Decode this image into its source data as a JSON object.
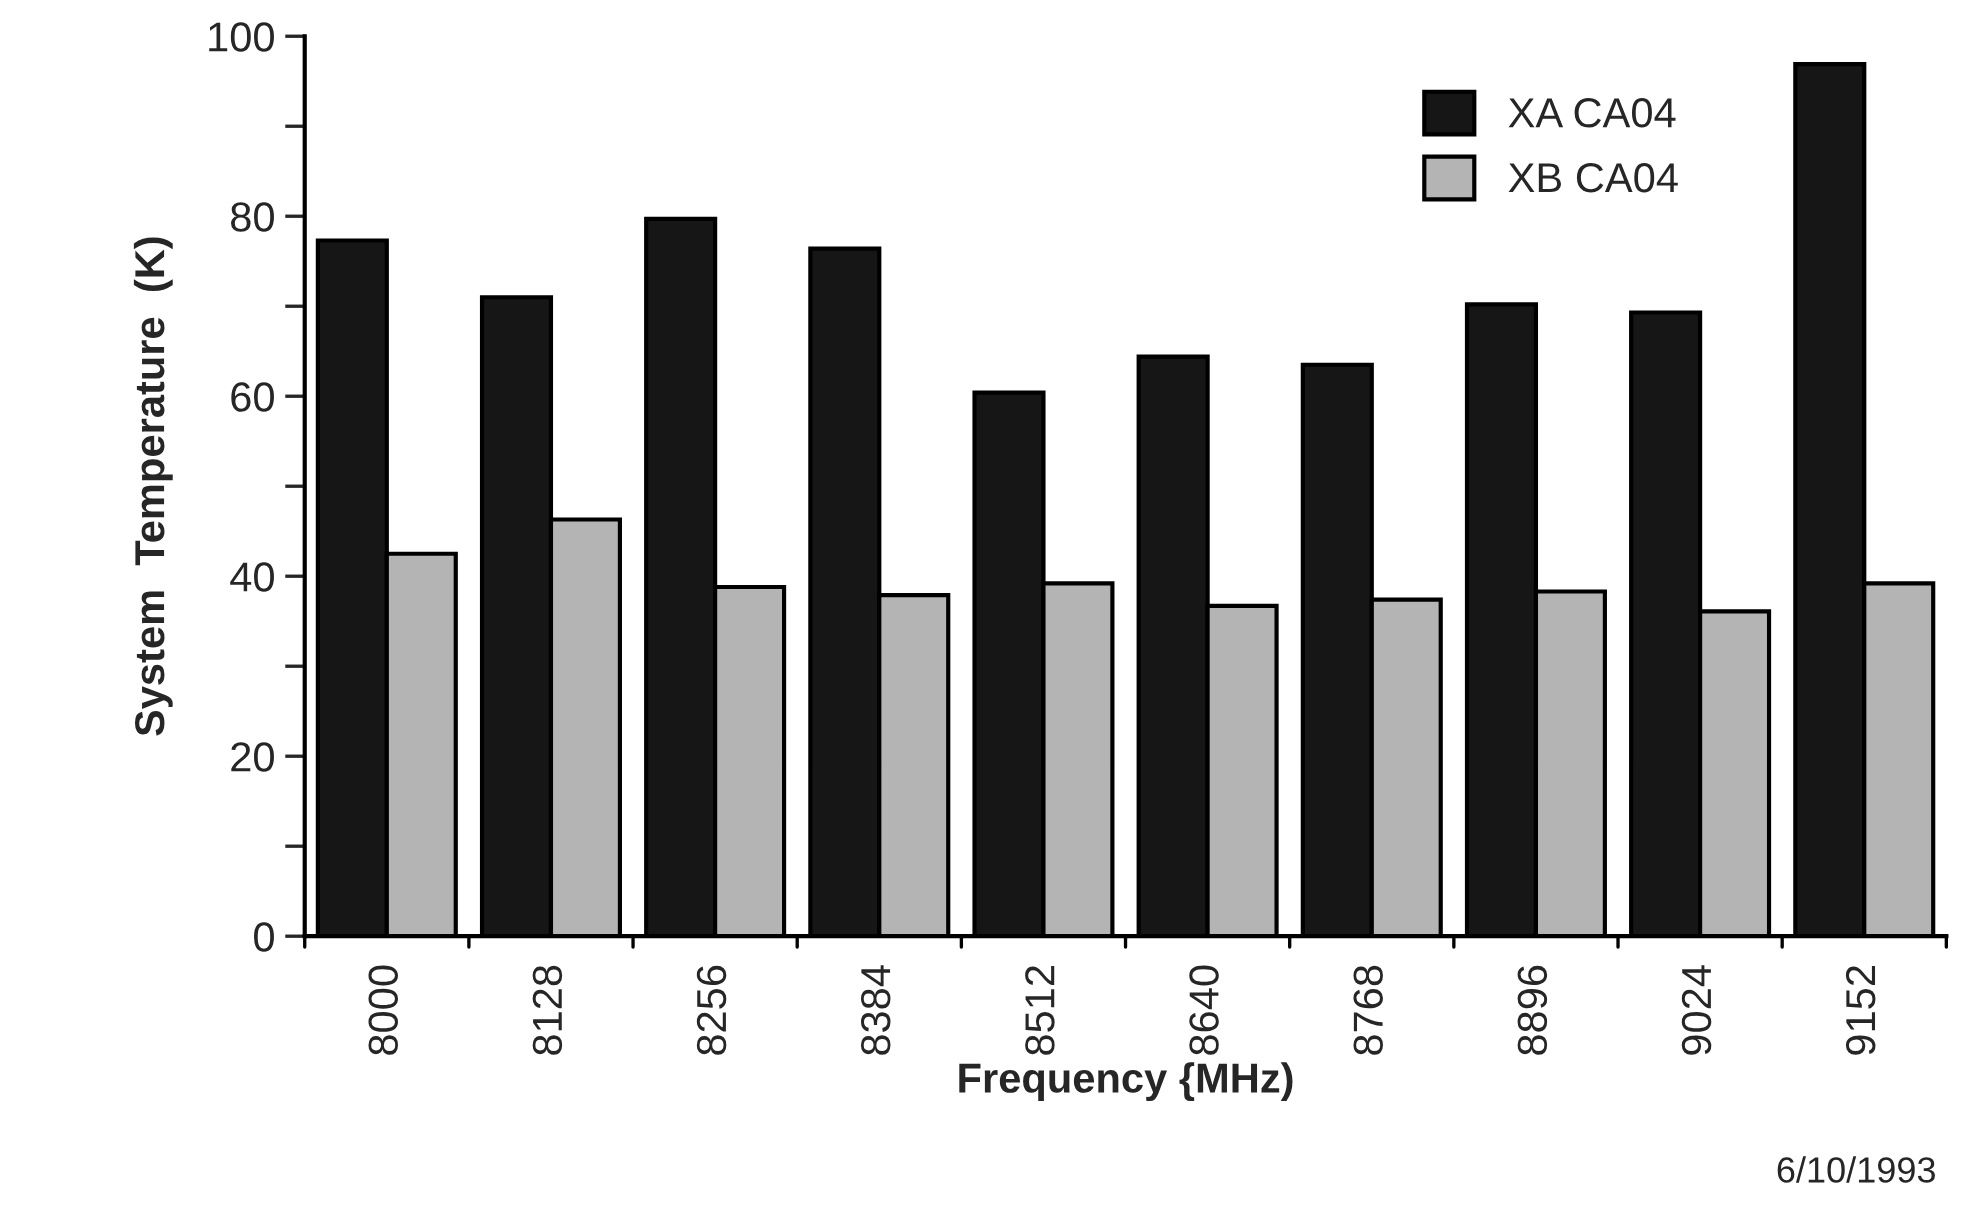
{
  "chart_data": {
    "type": "bar",
    "xlabel": "Frequency {MHz)",
    "ylabel": "System  Temperature  (K)",
    "categories": [
      "8000",
      "8128",
      "8256",
      "8384",
      "8512",
      "8640",
      "8768",
      "8896",
      "9024",
      "9152"
    ],
    "series": [
      {
        "name": "XA CA04",
        "color": "#161616",
        "values": [
          77.3,
          71,
          79.7,
          76.4,
          60.4,
          64.4,
          63.5,
          70.2,
          69.3,
          96.9
        ]
      },
      {
        "name": "XB CA04",
        "color": "#b4b4b4",
        "values": [
          42.5,
          46.3,
          38.8,
          37.9,
          39.2,
          36.7,
          37.4,
          38.3,
          36.1,
          39.2
        ]
      }
    ],
    "ylim": [
      0,
      100
    ],
    "yticks": [
      0,
      {
        "value": 10,
        "label": null
      },
      20,
      {
        "value": 30,
        "label": null
      },
      40,
      {
        "value": 50,
        "label": null
      },
      60,
      {
        "value": 70,
        "label": null
      },
      80,
      {
        "value": 90,
        "label": null
      },
      100
    ],
    "grid": false,
    "legend": "top right",
    "annotations": [
      "6/10/1993"
    ]
  }
}
